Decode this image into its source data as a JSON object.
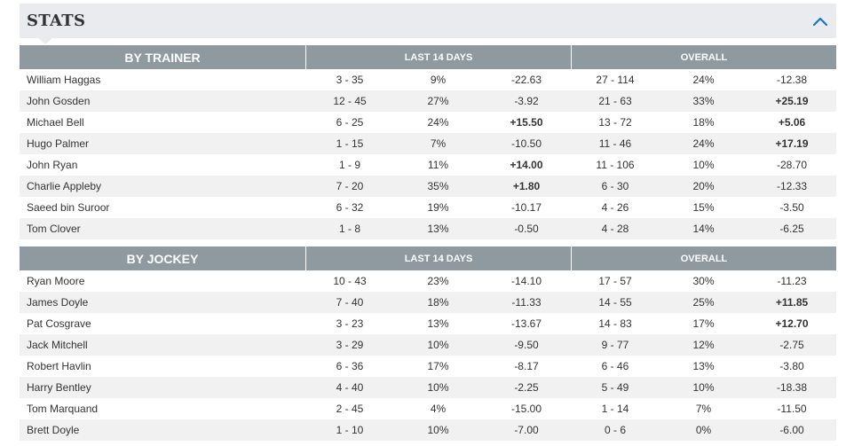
{
  "panel": {
    "title": "STATS",
    "collapse_icon": "chevron-up-icon"
  },
  "trainer": {
    "title": "BY TRAINER",
    "group_last14": "LAST 14 DAYS",
    "group_overall": "OVERALL",
    "rows": [
      {
        "name": "William Haggas",
        "l14_wr": "3 - 35",
        "l14_pct": "9%",
        "l14_pl": "-22.63",
        "ov_wr": "27 - 114",
        "ov_pct": "24%",
        "ov_pl": "-12.38"
      },
      {
        "name": "John Gosden",
        "l14_wr": "12 - 45",
        "l14_pct": "27%",
        "l14_pl": "-3.92",
        "ov_wr": "21 - 63",
        "ov_pct": "33%",
        "ov_pl": "+25.19"
      },
      {
        "name": "Michael Bell",
        "l14_wr": "6 - 25",
        "l14_pct": "24%",
        "l14_pl": "+15.50",
        "ov_wr": "13 - 72",
        "ov_pct": "18%",
        "ov_pl": "+5.06"
      },
      {
        "name": "Hugo Palmer",
        "l14_wr": "1 - 15",
        "l14_pct": "7%",
        "l14_pl": "-10.50",
        "ov_wr": "11 - 46",
        "ov_pct": "24%",
        "ov_pl": "+17.19"
      },
      {
        "name": "John Ryan",
        "l14_wr": "1 - 9",
        "l14_pct": "11%",
        "l14_pl": "+14.00",
        "ov_wr": "11 - 106",
        "ov_pct": "10%",
        "ov_pl": "-28.70"
      },
      {
        "name": "Charlie Appleby",
        "l14_wr": "7 - 20",
        "l14_pct": "35%",
        "l14_pl": "+1.80",
        "ov_wr": "6 - 30",
        "ov_pct": "20%",
        "ov_pl": "-12.33"
      },
      {
        "name": "Saeed bin Suroor",
        "l14_wr": "6 - 32",
        "l14_pct": "19%",
        "l14_pl": "-10.17",
        "ov_wr": "4 - 26",
        "ov_pct": "15%",
        "ov_pl": "-3.50"
      },
      {
        "name": "Tom Clover",
        "l14_wr": "1 - 8",
        "l14_pct": "13%",
        "l14_pl": "-0.50",
        "ov_wr": "4 - 28",
        "ov_pct": "14%",
        "ov_pl": "-6.25"
      }
    ]
  },
  "jockey": {
    "title": "BY JOCKEY",
    "group_last14": "LAST 14 DAYS",
    "group_overall": "OVERALL",
    "rows": [
      {
        "name": "Ryan Moore",
        "l14_wr": "10 - 43",
        "l14_pct": "23%",
        "l14_pl": "-14.10",
        "ov_wr": "17 - 57",
        "ov_pct": "30%",
        "ov_pl": "-11.23"
      },
      {
        "name": "James Doyle",
        "l14_wr": "7 - 40",
        "l14_pct": "18%",
        "l14_pl": "-11.33",
        "ov_wr": "14 - 55",
        "ov_pct": "25%",
        "ov_pl": "+11.85"
      },
      {
        "name": "Pat Cosgrave",
        "l14_wr": "3 - 23",
        "l14_pct": "13%",
        "l14_pl": "-13.67",
        "ov_wr": "14 - 83",
        "ov_pct": "17%",
        "ov_pl": "+12.70"
      },
      {
        "name": "Jack Mitchell",
        "l14_wr": "3 - 29",
        "l14_pct": "10%",
        "l14_pl": "-9.50",
        "ov_wr": "9 - 77",
        "ov_pct": "12%",
        "ov_pl": "-2.75"
      },
      {
        "name": "Robert Havlin",
        "l14_wr": "6 - 36",
        "l14_pct": "17%",
        "l14_pl": "-8.17",
        "ov_wr": "6 - 46",
        "ov_pct": "13%",
        "ov_pl": "-3.80"
      },
      {
        "name": "Harry Bentley",
        "l14_wr": "4 - 40",
        "l14_pct": "10%",
        "l14_pl": "-2.25",
        "ov_wr": "5 - 49",
        "ov_pct": "10%",
        "ov_pl": "-18.38"
      },
      {
        "name": "Tom Marquand",
        "l14_wr": "2 - 45",
        "l14_pct": "4%",
        "l14_pl": "-15.00",
        "ov_wr": "1 - 14",
        "ov_pct": "7%",
        "ov_pl": "-11.50"
      },
      {
        "name": "Brett Doyle",
        "l14_wr": "1 - 10",
        "l14_pct": "10%",
        "l14_pl": "-7.00",
        "ov_wr": "0 - 6",
        "ov_pct": "0%",
        "ov_pl": "-6.00"
      }
    ]
  },
  "colors": {
    "accent": "#1a73c8",
    "group_header_bg": "#8e9aa0",
    "panel_header_bg": "#e9ebee",
    "alt_row_bg": "#f1f1f1"
  }
}
